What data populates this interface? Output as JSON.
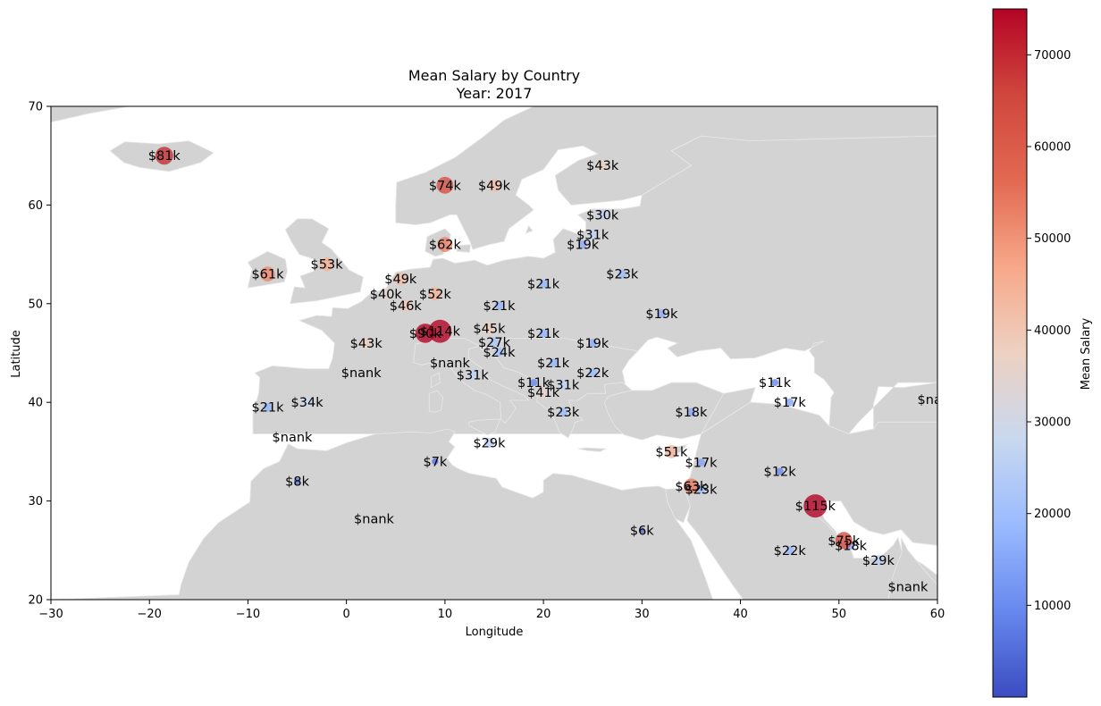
{
  "chart_data": {
    "type": "scatter",
    "title": "Mean Salary by Country",
    "subtitle": "Year: 2017",
    "xlabel": "Longitude",
    "ylabel": "Latitude",
    "xlim": [
      -30,
      60
    ],
    "ylim": [
      20,
      70
    ],
    "xticks": [
      -30,
      -20,
      -10,
      0,
      10,
      20,
      30,
      40,
      50,
      60
    ],
    "yticks": [
      20,
      30,
      40,
      50,
      60,
      70
    ],
    "grid": false,
    "colorbar": {
      "label": "Mean Salary",
      "colormap": "coolwarm",
      "range": [
        0,
        75000
      ],
      "ticks": [
        10000,
        20000,
        30000,
        40000,
        50000,
        60000,
        70000
      ]
    },
    "colors": {
      "land": "#d3d3d3",
      "land_edge": "#e6e6e6",
      "sea": "#ffffff",
      "cmap_low": "#3b4cc0",
      "cmap_mid": "#dddddd",
      "cmap_high": "#b40426"
    },
    "points": [
      {
        "x": -18.5,
        "y": 65,
        "v": 81000,
        "label": "$81k"
      },
      {
        "x": 10,
        "y": 62,
        "v": 74000,
        "label": "$74k"
      },
      {
        "x": 15,
        "y": 62,
        "v": 49000,
        "label": "$49k"
      },
      {
        "x": 26,
        "y": 64,
        "v": 43000,
        "label": "$43k"
      },
      {
        "x": 26,
        "y": 59,
        "v": 30000,
        "label": "$30k"
      },
      {
        "x": 25,
        "y": 57,
        "v": 31000,
        "label": "$31k"
      },
      {
        "x": 24,
        "y": 56,
        "v": 19000,
        "label": "$19k"
      },
      {
        "x": 10,
        "y": 56,
        "v": 62000,
        "label": "$62k"
      },
      {
        "x": 28,
        "y": 53,
        "v": 23000,
        "label": "$23k"
      },
      {
        "x": -8,
        "y": 53,
        "v": 61000,
        "label": "$61k"
      },
      {
        "x": -2,
        "y": 54,
        "v": 53000,
        "label": "$53k"
      },
      {
        "x": 5.5,
        "y": 52.5,
        "v": 49000,
        "label": "$49k"
      },
      {
        "x": 4,
        "y": 51,
        "v": 40000,
        "label": "$40k"
      },
      {
        "x": 9,
        "y": 51,
        "v": 52000,
        "label": "$52k"
      },
      {
        "x": 6,
        "y": 49.8,
        "v": 46000,
        "label": "$46k"
      },
      {
        "x": 20,
        "y": 52,
        "v": 21000,
        "label": "$21k"
      },
      {
        "x": 15.5,
        "y": 49.8,
        "v": 21000,
        "label": "$21k"
      },
      {
        "x": 32,
        "y": 49,
        "v": 19000,
        "label": "$19k"
      },
      {
        "x": 2,
        "y": 46,
        "v": 43000,
        "label": "$43k"
      },
      {
        "x": 8,
        "y": 47,
        "v": 90000,
        "label": "$90k"
      },
      {
        "x": 9.5,
        "y": 47.2,
        "v": 114000,
        "label": "$114k"
      },
      {
        "x": 14.5,
        "y": 47.5,
        "v": 45000,
        "label": "$45k"
      },
      {
        "x": 15,
        "y": 46.1,
        "v": 27000,
        "label": "$27k"
      },
      {
        "x": 15.5,
        "y": 45.1,
        "v": 24000,
        "label": "$24k"
      },
      {
        "x": 20,
        "y": 47,
        "v": 21000,
        "label": "$21k"
      },
      {
        "x": 25,
        "y": 46,
        "v": 19000,
        "label": "$19k"
      },
      {
        "x": 21,
        "y": 44,
        "v": 21000,
        "label": "$21k"
      },
      {
        "x": 25,
        "y": 43,
        "v": 22000,
        "label": "$22k"
      },
      {
        "x": 12.8,
        "y": 42.8,
        "v": 31000,
        "label": "$31k"
      },
      {
        "x": 19,
        "y": 42,
        "v": 11000,
        "label": "$11k"
      },
      {
        "x": 22,
        "y": 41.8,
        "v": 31000,
        "label": "$31k"
      },
      {
        "x": 20,
        "y": 41,
        "v": 41000,
        "label": "$41k"
      },
      {
        "x": 22,
        "y": 39,
        "v": 23000,
        "label": "$23k"
      },
      {
        "x": 43.5,
        "y": 42,
        "v": 11000,
        "label": "$11k"
      },
      {
        "x": 45,
        "y": 40,
        "v": 17000,
        "label": "$17k"
      },
      {
        "x": -8,
        "y": 39.5,
        "v": 21000,
        "label": "$21k"
      },
      {
        "x": -4,
        "y": 40,
        "v": 34000,
        "label": "$34k"
      },
      {
        "x": 35,
        "y": 39,
        "v": 18000,
        "label": "$18k"
      },
      {
        "x": 14.5,
        "y": 35.9,
        "v": 29000,
        "label": "$29k"
      },
      {
        "x": 33,
        "y": 35,
        "v": 51000,
        "label": "$51k"
      },
      {
        "x": 36,
        "y": 33.9,
        "v": 17000,
        "label": "$17k"
      },
      {
        "x": 9,
        "y": 34,
        "v": 7000,
        "label": "$7k"
      },
      {
        "x": -5,
        "y": 32,
        "v": 8000,
        "label": "$8k"
      },
      {
        "x": 44,
        "y": 33,
        "v": 12000,
        "label": "$12k"
      },
      {
        "x": 35,
        "y": 31.5,
        "v": 63000,
        "label": "$63k"
      },
      {
        "x": 36,
        "y": 31.2,
        "v": 23000,
        "label": "$23k"
      },
      {
        "x": 47.6,
        "y": 29.5,
        "v": 115000,
        "label": "$115k"
      },
      {
        "x": 30,
        "y": 27,
        "v": 6000,
        "label": "$6k"
      },
      {
        "x": 50.5,
        "y": 26,
        "v": 75000,
        "label": "$75k"
      },
      {
        "x": 51.2,
        "y": 25.5,
        "v": 18000,
        "label": "$18k"
      },
      {
        "x": 45,
        "y": 25,
        "v": 22000,
        "label": "$22k"
      },
      {
        "x": 54,
        "y": 24,
        "v": 29000,
        "label": "$29k"
      }
    ],
    "missing_labels": [
      {
        "x": 1.5,
        "y": 43,
        "label": "$nank"
      },
      {
        "x": 10.5,
        "y": 44,
        "label": "$nank"
      },
      {
        "x": -5.5,
        "y": 36.5,
        "label": "$nank"
      },
      {
        "x": 2.8,
        "y": 28.2,
        "label": "$nank"
      },
      {
        "x": 60,
        "y": 40.3,
        "label": "$nank"
      },
      {
        "x": 57,
        "y": 21.3,
        "label": "$nank"
      }
    ]
  }
}
